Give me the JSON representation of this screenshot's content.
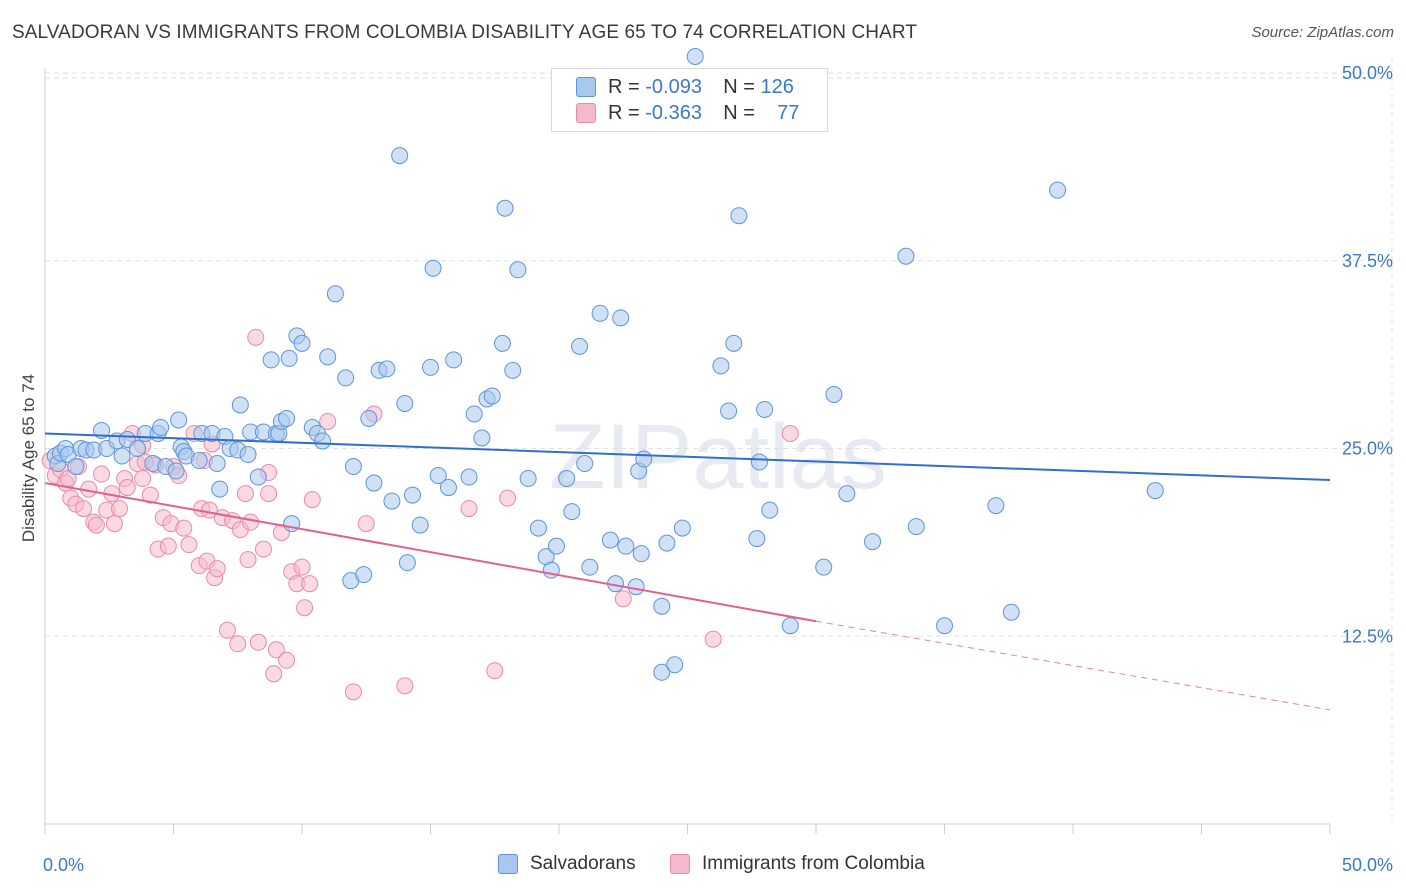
{
  "title": "SALVADORAN VS IMMIGRANTS FROM COLOMBIA DISABILITY AGE 65 TO 74 CORRELATION CHART",
  "source": "Source: ZipAtlas.com",
  "watermark": "ZIPatlas",
  "legend": {
    "r_label": "R =",
    "n_label": "N =",
    "rows": [
      {
        "r": "-0.093",
        "n": "126"
      },
      {
        "r": "-0.363",
        "n": "77"
      }
    ]
  },
  "colors": {
    "blue_fill": "#a9c8ef",
    "blue_stroke": "#5d94d9",
    "blue_line": "#2f6fd0",
    "pink_fill": "#f5b9cc",
    "pink_stroke": "#ea8aa8",
    "pink_line": "#e0608e",
    "tick_label": "#3b78c9",
    "grid": "#e2e2e2"
  },
  "chart_data": {
    "type": "scatter",
    "title": "SALVADORAN VS IMMIGRANTS FROM COLOMBIA DISABILITY AGE 65 TO 74 CORRELATION CHART",
    "xlabel": "",
    "ylabel": "Disability Age 65 to 74",
    "xlim": [
      0,
      50
    ],
    "ylim": [
      0,
      51
    ],
    "x_tick_labels": [
      "0.0%",
      "50.0%"
    ],
    "y_ticks": [
      12.5,
      25.0,
      37.5,
      50.0
    ],
    "y_tick_labels": [
      "12.5%",
      "25.0%",
      "37.5%",
      "50.0%"
    ],
    "grid": true,
    "legend_position": "bottom",
    "series": [
      {
        "name": "Salvadorans",
        "r": -0.093,
        "n": 126,
        "trend": {
          "x0": 0,
          "y0": 26.0,
          "x1": 50,
          "y1": 22.9
        },
        "points": [
          [
            0.4,
            24.5
          ],
          [
            0.5,
            24.0
          ],
          [
            0.6,
            24.7
          ],
          [
            0.8,
            25.0
          ],
          [
            0.9,
            24.6
          ],
          [
            1.2,
            23.8
          ],
          [
            1.4,
            25.0
          ],
          [
            1.6,
            24.9
          ],
          [
            1.9,
            24.9
          ],
          [
            2.2,
            26.2
          ],
          [
            2.4,
            25.0
          ],
          [
            2.8,
            25.5
          ],
          [
            3.0,
            24.5
          ],
          [
            3.2,
            25.6
          ],
          [
            3.6,
            25.0
          ],
          [
            3.9,
            26.0
          ],
          [
            4.2,
            24.0
          ],
          [
            4.4,
            26.0
          ],
          [
            4.5,
            26.4
          ],
          [
            4.7,
            23.8
          ],
          [
            5.1,
            23.5
          ],
          [
            5.2,
            26.9
          ],
          [
            5.3,
            25.1
          ],
          [
            5.4,
            24.8
          ],
          [
            5.5,
            24.5
          ],
          [
            6.0,
            24.2
          ],
          [
            6.1,
            26.0
          ],
          [
            6.5,
            26.0
          ],
          [
            6.7,
            24.0
          ],
          [
            6.8,
            22.3
          ],
          [
            7.0,
            25.8
          ],
          [
            7.2,
            25.0
          ],
          [
            7.5,
            24.9
          ],
          [
            7.6,
            27.9
          ],
          [
            7.9,
            24.6
          ],
          [
            8.0,
            26.1
          ],
          [
            8.3,
            23.1
          ],
          [
            8.5,
            26.1
          ],
          [
            8.8,
            30.9
          ],
          [
            9.0,
            26.0
          ],
          [
            9.1,
            26.0
          ],
          [
            9.2,
            26.8
          ],
          [
            9.4,
            27.0
          ],
          [
            9.6,
            20.0
          ],
          [
            9.8,
            32.5
          ],
          [
            10.0,
            32.0
          ],
          [
            10.4,
            26.4
          ],
          [
            10.6,
            26.0
          ],
          [
            10.8,
            25.5
          ],
          [
            11.0,
            31.1
          ],
          [
            11.3,
            35.3
          ],
          [
            11.7,
            29.7
          ],
          [
            11.9,
            16.2
          ],
          [
            12.0,
            23.8
          ],
          [
            12.4,
            16.6
          ],
          [
            12.8,
            22.7
          ],
          [
            13.0,
            30.2
          ],
          [
            13.3,
            30.3
          ],
          [
            13.5,
            21.5
          ],
          [
            13.8,
            44.5
          ],
          [
            14.1,
            17.4
          ],
          [
            14.3,
            21.9
          ],
          [
            14.6,
            19.9
          ],
          [
            15.1,
            37.0
          ],
          [
            15.3,
            23.2
          ],
          [
            15.7,
            22.4
          ],
          [
            15.9,
            30.9
          ],
          [
            16.5,
            23.1
          ],
          [
            16.7,
            27.3
          ],
          [
            17.0,
            25.7
          ],
          [
            17.2,
            28.3
          ],
          [
            17.4,
            28.5
          ],
          [
            17.9,
            41.0
          ],
          [
            17.8,
            32.0
          ],
          [
            18.2,
            30.2
          ],
          [
            18.4,
            36.9
          ],
          [
            18.8,
            23.0
          ],
          [
            19.2,
            19.7
          ],
          [
            19.5,
            17.8
          ],
          [
            19.7,
            16.9
          ],
          [
            19.9,
            18.5
          ],
          [
            20.3,
            23.0
          ],
          [
            20.5,
            20.8
          ],
          [
            20.8,
            31.8
          ],
          [
            21.0,
            24.0
          ],
          [
            21.2,
            17.1
          ],
          [
            21.6,
            34.0
          ],
          [
            22.0,
            18.9
          ],
          [
            22.2,
            16.0
          ],
          [
            22.4,
            33.7
          ],
          [
            22.6,
            18.5
          ],
          [
            23.0,
            15.8
          ],
          [
            23.1,
            23.5
          ],
          [
            23.2,
            18.0
          ],
          [
            23.3,
            24.3
          ],
          [
            24.0,
            14.5
          ],
          [
            24.0,
            10.1
          ],
          [
            24.2,
            18.7
          ],
          [
            24.5,
            10.6
          ],
          [
            24.8,
            19.7
          ],
          [
            25.3,
            51.1
          ],
          [
            26.2,
            47.8
          ],
          [
            26.3,
            30.5
          ],
          [
            26.6,
            27.5
          ],
          [
            26.8,
            32.0
          ],
          [
            27.0,
            40.5
          ],
          [
            27.7,
            19.0
          ],
          [
            27.8,
            24.1
          ],
          [
            28.0,
            27.6
          ],
          [
            28.2,
            20.9
          ],
          [
            29.0,
            13.2
          ],
          [
            30.3,
            17.1
          ],
          [
            30.7,
            28.6
          ],
          [
            31.2,
            22.0
          ],
          [
            32.2,
            18.8
          ],
          [
            33.5,
            37.8
          ],
          [
            33.9,
            19.8
          ],
          [
            35.0,
            13.2
          ],
          [
            37.0,
            21.2
          ],
          [
            37.6,
            14.1
          ],
          [
            39.4,
            42.2
          ],
          [
            43.2,
            22.2
          ],
          [
            15.0,
            30.4
          ],
          [
            12.6,
            27.0
          ],
          [
            14.0,
            28.0
          ],
          [
            9.5,
            31.0
          ]
        ]
      },
      {
        "name": "Immigrants from Colombia",
        "r": -0.363,
        "n": 77,
        "trend": {
          "x0": 0,
          "y0": 22.7,
          "x1": 30,
          "y1": 13.5,
          "dash_x1": 50,
          "dash_y1": 7.6
        },
        "points": [
          [
            0.2,
            24.2
          ],
          [
            0.4,
            23.2
          ],
          [
            0.6,
            23.6
          ],
          [
            0.8,
            22.7
          ],
          [
            0.9,
            23.0
          ],
          [
            1.0,
            21.7
          ],
          [
            1.2,
            21.3
          ],
          [
            1.3,
            23.8
          ],
          [
            1.5,
            21.0
          ],
          [
            1.7,
            22.3
          ],
          [
            1.9,
            20.1
          ],
          [
            2.0,
            19.9
          ],
          [
            2.2,
            23.3
          ],
          [
            2.4,
            20.9
          ],
          [
            2.6,
            22.0
          ],
          [
            2.7,
            20.0
          ],
          [
            2.9,
            21.0
          ],
          [
            3.1,
            23.0
          ],
          [
            3.2,
            22.4
          ],
          [
            3.4,
            26.0
          ],
          [
            3.6,
            24.0
          ],
          [
            3.8,
            23.0
          ],
          [
            3.9,
            24.1
          ],
          [
            4.1,
            21.9
          ],
          [
            4.3,
            23.9
          ],
          [
            4.4,
            18.3
          ],
          [
            4.6,
            20.4
          ],
          [
            4.8,
            18.5
          ],
          [
            4.9,
            20.0
          ],
          [
            5.0,
            23.8
          ],
          [
            5.2,
            23.2
          ],
          [
            5.4,
            19.7
          ],
          [
            5.6,
            18.6
          ],
          [
            5.8,
            26.0
          ],
          [
            6.0,
            17.2
          ],
          [
            6.1,
            21.0
          ],
          [
            6.2,
            24.2
          ],
          [
            6.3,
            17.5
          ],
          [
            6.4,
            20.9
          ],
          [
            6.5,
            25.3
          ],
          [
            6.6,
            16.4
          ],
          [
            6.7,
            17.0
          ],
          [
            6.9,
            20.4
          ],
          [
            7.1,
            12.9
          ],
          [
            7.3,
            20.2
          ],
          [
            7.5,
            12.0
          ],
          [
            7.6,
            19.6
          ],
          [
            7.8,
            22.0
          ],
          [
            7.9,
            17.6
          ],
          [
            8.0,
            20.1
          ],
          [
            8.2,
            32.4
          ],
          [
            8.3,
            12.1
          ],
          [
            8.5,
            18.3
          ],
          [
            8.7,
            22.0
          ],
          [
            8.9,
            10.0
          ],
          [
            9.0,
            11.6
          ],
          [
            9.2,
            19.4
          ],
          [
            9.4,
            10.9
          ],
          [
            9.6,
            16.8
          ],
          [
            9.8,
            16.0
          ],
          [
            10.0,
            17.1
          ],
          [
            10.1,
            14.4
          ],
          [
            10.3,
            16.0
          ],
          [
            10.4,
            21.6
          ],
          [
            11.0,
            26.8
          ],
          [
            12.0,
            8.8
          ],
          [
            12.8,
            27.3
          ],
          [
            14.0,
            9.2
          ],
          [
            16.5,
            21.0
          ],
          [
            17.5,
            10.2
          ],
          [
            18.0,
            21.7
          ],
          [
            22.5,
            15.0
          ],
          [
            26.0,
            12.3
          ],
          [
            29.0,
            26.0
          ],
          [
            3.8,
            25.2
          ],
          [
            8.7,
            23.4
          ],
          [
            12.5,
            20.0
          ]
        ]
      }
    ]
  },
  "bottom_legend": [
    "Salvadorans",
    "Immigrants from Colombia"
  ]
}
